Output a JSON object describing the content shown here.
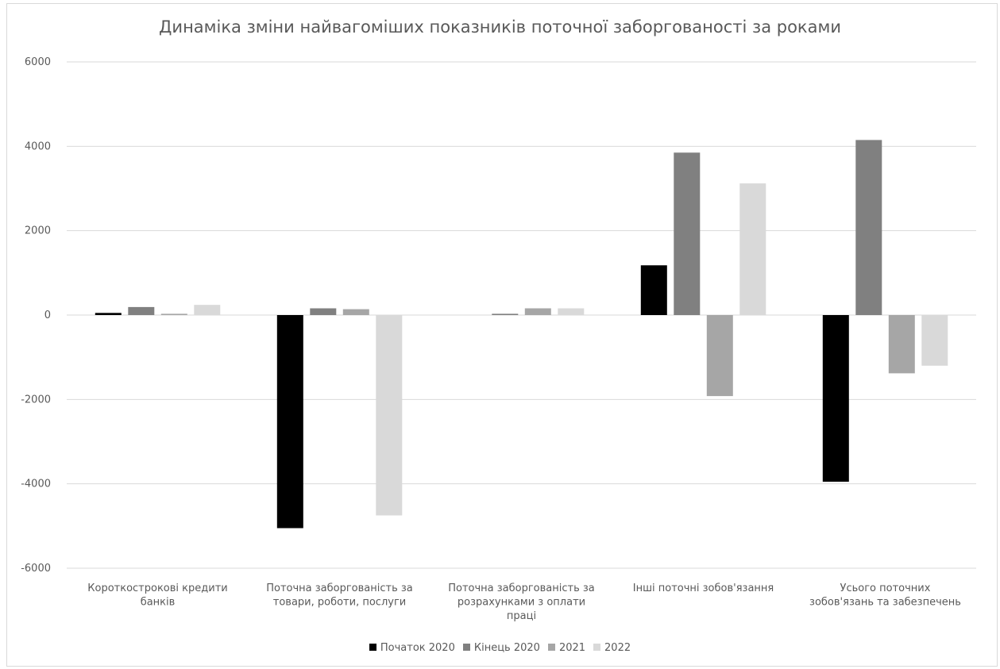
{
  "chart_data": {
    "type": "bar",
    "title": "Динаміка зміни найвагоміших показників поточної заборгованості за роками",
    "xlabel": "",
    "ylabel": "",
    "ylim": [
      -6000,
      6000
    ],
    "yticks": [
      6000,
      4000,
      2000,
      0,
      -2000,
      -4000,
      -6000
    ],
    "grid": true,
    "legend_position": "bottom",
    "categories": [
      [
        "Короткострокові кредити",
        "банків"
      ],
      [
        "Поточна заборгованість за",
        "товари, роботи, послуги"
      ],
      [
        "Поточна заборгованість за",
        "розрахунками з оплати",
        "праці"
      ],
      [
        "Інші поточні зобов'язання"
      ],
      [
        "Усього поточних",
        "зобов'язань та забезпечень"
      ]
    ],
    "series": [
      {
        "name": "Початок 2020",
        "color": "#000000",
        "values": [
          50,
          -5050,
          0,
          1180,
          -3950
        ]
      },
      {
        "name": "Кінець 2020",
        "color": "#808080",
        "values": [
          190,
          160,
          30,
          3850,
          4150
        ]
      },
      {
        "name": "2021",
        "color": "#a6a6a6",
        "values": [
          30,
          140,
          160,
          -1920,
          -1380
        ]
      },
      {
        "name": "2022",
        "color": "#d9d9d9",
        "values": [
          240,
          -4750,
          160,
          3120,
          -1200
        ]
      }
    ]
  }
}
